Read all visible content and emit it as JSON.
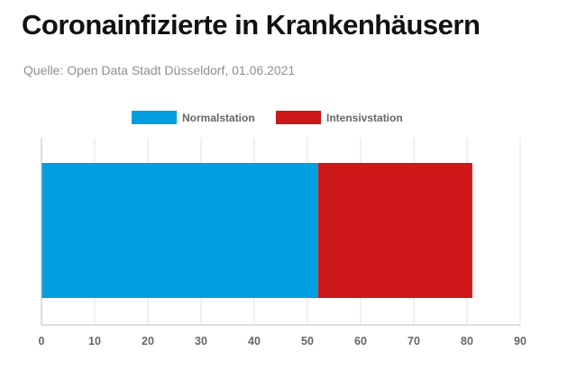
{
  "header": {
    "title": "Coronainfizierte in Krankenhäusern",
    "subtitle": "Quelle: Open Data Stadt Düsseldorf, 01.06.2021"
  },
  "chart_data": {
    "type": "bar",
    "orientation": "horizontal",
    "stacked": true,
    "categories": [
      ""
    ],
    "series": [
      {
        "name": "Normalstation",
        "values": [
          52
        ],
        "color": "#009ee0"
      },
      {
        "name": "Intensivstation",
        "values": [
          29
        ],
        "color": "#cd1719"
      }
    ],
    "xlim": [
      0,
      90
    ],
    "xticks": [
      0,
      10,
      20,
      30,
      40,
      50,
      60,
      70,
      80,
      90
    ],
    "grid": true,
    "legend_position": "top-center"
  }
}
